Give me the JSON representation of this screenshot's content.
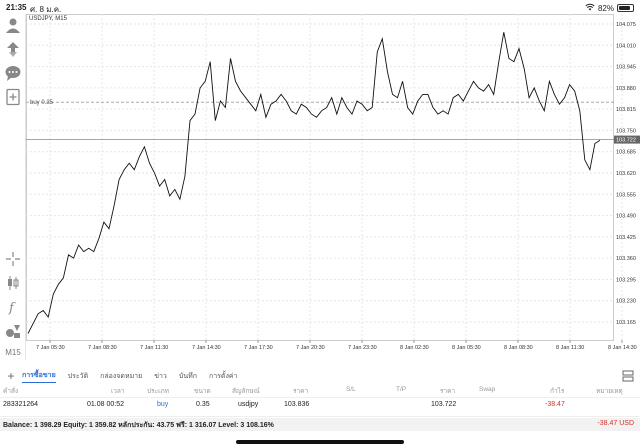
{
  "status": {
    "time": "21:35",
    "date": "ศ. 8 ม.ค.",
    "battery": "82%",
    "battery_level": 0.82
  },
  "chart": {
    "symbol": "USDJPY, M15",
    "buy_line_label": "buy 0.35",
    "buy_price": 103.836,
    "current_price": 103.722,
    "current_price_label": "103.722",
    "timeframe": "M15",
    "price_ticks": [
      "104.075",
      "104.010",
      "103.945",
      "103.880",
      "103.815",
      "103.750",
      "103.685",
      "103.620",
      "103.555",
      "103.490",
      "103.425",
      "103.360",
      "103.295",
      "103.230",
      "103.165"
    ],
    "time_ticks": [
      "7 Jan 05:30",
      "7 Jan 08:30",
      "7 Jan 11:30",
      "7 Jan 14:30",
      "7 Jan 17:30",
      "7 Jan 20:30",
      "7 Jan 23:30",
      "8 Jan 02:30",
      "8 Jan 05:30",
      "8 Jan 08:30",
      "8 Jan 11:30",
      "8 Jan 14:30"
    ]
  },
  "chart_data": {
    "type": "line",
    "title": "USDJPY, M15",
    "ylim": [
      103.1,
      104.1
    ],
    "x_label_first": "7 Jan 05:30",
    "series": [
      {
        "values": [
          103.13,
          103.16,
          103.19,
          103.2,
          103.18,
          103.25,
          103.28,
          103.3,
          103.37,
          103.36,
          103.4,
          103.38,
          103.39,
          103.38,
          103.42,
          103.47,
          103.45,
          103.52,
          103.6,
          103.63,
          103.65,
          103.63,
          103.67,
          103.7,
          103.65,
          103.62,
          103.58,
          103.6,
          103.55,
          103.57,
          103.54,
          103.61,
          103.78,
          103.8,
          103.88,
          103.9,
          103.96,
          103.78,
          103.84,
          103.82,
          103.97,
          103.9,
          103.87,
          103.85,
          103.83,
          103.81,
          103.86,
          103.79,
          103.83,
          103.84,
          103.86,
          103.84,
          103.81,
          103.8,
          103.83,
          103.82,
          103.8,
          103.79,
          103.81,
          103.82,
          103.85,
          103.8,
          103.85,
          103.82,
          103.8,
          103.84,
          103.83,
          103.81,
          103.82,
          103.99,
          104.03,
          103.93,
          103.86,
          103.85,
          103.9,
          103.82,
          103.8,
          103.84,
          103.86,
          103.86,
          103.82,
          103.8,
          103.81,
          103.8,
          103.85,
          103.86,
          103.84,
          103.87,
          103.9,
          103.88,
          103.87,
          103.89,
          103.86,
          103.96,
          104.05,
          103.97,
          103.96,
          104.0,
          103.94,
          103.85,
          103.88,
          103.84,
          103.81,
          103.9,
          103.86,
          103.83,
          103.85,
          103.89,
          103.87,
          103.81,
          103.66,
          103.63,
          103.71,
          103.72
        ]
      }
    ]
  },
  "tabs": [
    {
      "label": "การซื้อขาย",
      "active": true
    },
    {
      "label": "ประวัติ"
    },
    {
      "label": "กล่องจดหมาย"
    },
    {
      "label": "ข่าว"
    },
    {
      "label": "บันทึก"
    },
    {
      "label": "การตั้งค่า"
    }
  ],
  "table": {
    "headers": [
      "คำสั่ง",
      "เวลา",
      "ประเภท",
      "ขนาด",
      "สัญลักษณ์",
      "ราคา",
      "S/L",
      "T/P",
      "ราคา",
      "Swap",
      "กำไร",
      "หมายเหตุ"
    ],
    "row": {
      "ticket": "283321264",
      "time": "01.08 00:52",
      "type": "buy",
      "volume": "0.35",
      "symbol": "usdjpy",
      "open_price": "103.836",
      "current_price": "103.722",
      "profit": "-38.47"
    }
  },
  "footer": {
    "balance_text": "Balance: 1 398.29 Equity: 1 359.82 หลักประกัน: 43.75 ฟรี: 1 316.07 Level: 3 108.16%",
    "total_profit": "-38.47  USD"
  }
}
